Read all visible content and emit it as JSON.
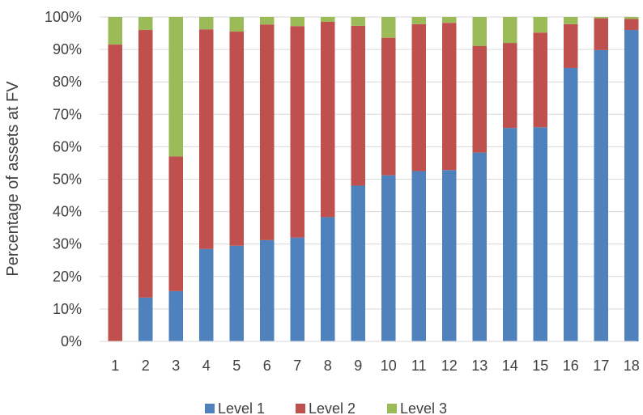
{
  "chart_data": {
    "type": "bar",
    "stacked": true,
    "categories": [
      "1",
      "2",
      "3",
      "4",
      "5",
      "6",
      "7",
      "8",
      "9",
      "10",
      "11",
      "12",
      "13",
      "14",
      "15",
      "16",
      "17",
      "18"
    ],
    "series": [
      {
        "name": "Level 1",
        "color": "#4f81bd",
        "values": [
          0.0,
          13.5,
          15.5,
          28.5,
          29.5,
          31.2,
          32.0,
          38.3,
          48.0,
          51.2,
          52.5,
          52.8,
          58.2,
          65.8,
          66.0,
          84.3,
          89.8,
          96.0
        ]
      },
      {
        "name": "Level 2",
        "color": "#c0504d",
        "values": [
          91.5,
          82.5,
          41.5,
          67.7,
          66.0,
          66.5,
          65.2,
          60.2,
          49.3,
          42.4,
          45.3,
          45.4,
          32.9,
          26.2,
          29.2,
          13.5,
          9.8,
          3.4
        ]
      },
      {
        "name": "Level 3",
        "color": "#9bbb59",
        "values": [
          8.5,
          4.0,
          43.0,
          3.8,
          4.5,
          2.3,
          2.8,
          1.5,
          2.7,
          6.4,
          2.2,
          1.8,
          8.9,
          8.0,
          4.8,
          2.2,
          0.4,
          0.6
        ]
      }
    ],
    "ylabel": "Percentage of assets at FV",
    "xlabel": "",
    "title": "",
    "ylim": [
      0,
      100
    ],
    "yticks": [
      "0%",
      "10%",
      "20%",
      "30%",
      "40%",
      "50%",
      "60%",
      "70%",
      "80%",
      "90%",
      "100%"
    ],
    "grid": true,
    "legend_position": "bottom"
  }
}
